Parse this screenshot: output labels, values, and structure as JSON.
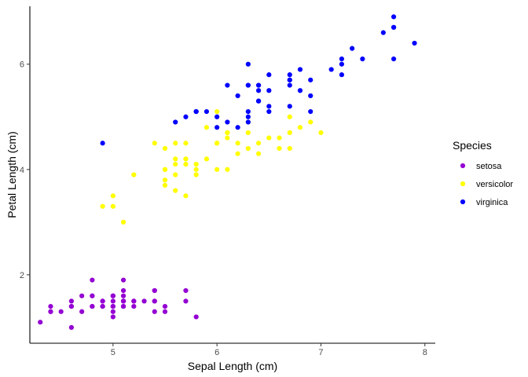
{
  "chart_data": {
    "type": "scatter",
    "title": "",
    "xlabel": "Sepal Length (cm)",
    "ylabel": "Petal Length (cm)",
    "xlim": [
      4.2,
      8.1
    ],
    "ylim": [
      0.7,
      7.1
    ],
    "xticks": [
      5,
      6,
      7,
      8
    ],
    "yticks": [
      2,
      4,
      6
    ],
    "grid": false,
    "legend": {
      "title": "Species",
      "placement": "right"
    },
    "series": [
      {
        "name": "setosa",
        "color": "#9400d3",
        "points": [
          [
            5.1,
            1.4
          ],
          [
            4.9,
            1.4
          ],
          [
            4.7,
            1.3
          ],
          [
            4.6,
            1.5
          ],
          [
            5.0,
            1.4
          ],
          [
            5.4,
            1.7
          ],
          [
            4.6,
            1.4
          ],
          [
            5.0,
            1.5
          ],
          [
            4.4,
            1.4
          ],
          [
            4.9,
            1.5
          ],
          [
            5.4,
            1.5
          ],
          [
            4.8,
            1.6
          ],
          [
            4.8,
            1.4
          ],
          [
            4.3,
            1.1
          ],
          [
            5.8,
            1.2
          ],
          [
            5.7,
            1.5
          ],
          [
            5.4,
            1.3
          ],
          [
            5.1,
            1.4
          ],
          [
            5.7,
            1.7
          ],
          [
            5.1,
            1.5
          ],
          [
            5.4,
            1.7
          ],
          [
            5.1,
            1.5
          ],
          [
            4.6,
            1.0
          ],
          [
            5.1,
            1.7
          ],
          [
            4.8,
            1.9
          ],
          [
            5.0,
            1.6
          ],
          [
            5.0,
            1.6
          ],
          [
            5.2,
            1.5
          ],
          [
            5.2,
            1.4
          ],
          [
            4.7,
            1.6
          ],
          [
            4.8,
            1.6
          ],
          [
            5.4,
            1.5
          ],
          [
            5.2,
            1.5
          ],
          [
            5.5,
            1.4
          ],
          [
            4.9,
            1.5
          ],
          [
            5.0,
            1.2
          ],
          [
            5.5,
            1.3
          ],
          [
            4.9,
            1.4
          ],
          [
            4.4,
            1.3
          ],
          [
            5.1,
            1.5
          ],
          [
            5.0,
            1.3
          ],
          [
            4.5,
            1.3
          ],
          [
            4.4,
            1.3
          ],
          [
            5.0,
            1.6
          ],
          [
            5.1,
            1.9
          ],
          [
            4.8,
            1.4
          ],
          [
            5.1,
            1.6
          ],
          [
            4.6,
            1.4
          ],
          [
            5.3,
            1.5
          ],
          [
            5.0,
            1.4
          ]
        ]
      },
      {
        "name": "versicolor",
        "color": "#ffff00",
        "points": [
          [
            7.0,
            4.7
          ],
          [
            6.4,
            4.5
          ],
          [
            6.9,
            4.9
          ],
          [
            5.5,
            4.0
          ],
          [
            6.5,
            4.6
          ],
          [
            5.7,
            4.5
          ],
          [
            6.3,
            4.7
          ],
          [
            4.9,
            3.3
          ],
          [
            6.6,
            4.6
          ],
          [
            5.2,
            3.9
          ],
          [
            5.0,
            3.5
          ],
          [
            5.9,
            4.2
          ],
          [
            6.0,
            4.0
          ],
          [
            6.1,
            4.7
          ],
          [
            5.6,
            3.6
          ],
          [
            6.7,
            4.4
          ],
          [
            5.6,
            4.5
          ],
          [
            5.8,
            4.1
          ],
          [
            6.2,
            4.5
          ],
          [
            5.6,
            3.9
          ],
          [
            5.9,
            4.8
          ],
          [
            6.1,
            4.0
          ],
          [
            6.3,
            4.9
          ],
          [
            6.1,
            4.7
          ],
          [
            6.4,
            4.3
          ],
          [
            6.6,
            4.4
          ],
          [
            6.8,
            4.8
          ],
          [
            6.7,
            5.0
          ],
          [
            6.0,
            4.5
          ],
          [
            5.7,
            3.5
          ],
          [
            5.5,
            3.8
          ],
          [
            5.5,
            3.7
          ],
          [
            5.8,
            3.9
          ],
          [
            6.0,
            5.1
          ],
          [
            5.4,
            4.5
          ],
          [
            6.0,
            4.5
          ],
          [
            6.7,
            4.7
          ],
          [
            6.3,
            4.4
          ],
          [
            5.6,
            4.1
          ],
          [
            5.5,
            4.0
          ],
          [
            5.5,
            4.4
          ],
          [
            6.1,
            4.6
          ],
          [
            5.8,
            4.0
          ],
          [
            5.0,
            3.3
          ],
          [
            5.6,
            4.2
          ],
          [
            5.7,
            4.2
          ],
          [
            5.7,
            4.2
          ],
          [
            6.2,
            4.3
          ],
          [
            5.1,
            3.0
          ],
          [
            5.7,
            4.1
          ]
        ]
      },
      {
        "name": "virginica",
        "color": "#0000ff",
        "points": [
          [
            6.3,
            6.0
          ],
          [
            5.8,
            5.1
          ],
          [
            7.1,
            5.9
          ],
          [
            6.3,
            5.6
          ],
          [
            6.5,
            5.8
          ],
          [
            7.6,
            6.6
          ],
          [
            4.9,
            4.5
          ],
          [
            7.3,
            6.3
          ],
          [
            6.7,
            5.8
          ],
          [
            7.2,
            6.1
          ],
          [
            6.5,
            5.1
          ],
          [
            6.4,
            5.3
          ],
          [
            6.8,
            5.5
          ],
          [
            5.7,
            5.0
          ],
          [
            5.8,
            5.1
          ],
          [
            6.4,
            5.3
          ],
          [
            6.5,
            5.5
          ],
          [
            7.7,
            6.7
          ],
          [
            7.7,
            6.9
          ],
          [
            6.0,
            5.0
          ],
          [
            6.9,
            5.7
          ],
          [
            5.6,
            4.9
          ],
          [
            7.7,
            6.7
          ],
          [
            6.3,
            4.9
          ],
          [
            6.7,
            5.7
          ],
          [
            7.2,
            6.0
          ],
          [
            6.2,
            4.8
          ],
          [
            6.1,
            4.9
          ],
          [
            6.4,
            5.6
          ],
          [
            7.2,
            5.8
          ],
          [
            7.4,
            6.1
          ],
          [
            7.9,
            6.4
          ],
          [
            6.4,
            5.6
          ],
          [
            6.3,
            5.1
          ],
          [
            6.1,
            5.6
          ],
          [
            7.7,
            6.1
          ],
          [
            6.3,
            5.6
          ],
          [
            6.4,
            5.5
          ],
          [
            6.0,
            4.8
          ],
          [
            6.9,
            5.4
          ],
          [
            6.7,
            5.6
          ],
          [
            6.9,
            5.1
          ],
          [
            5.8,
            5.1
          ],
          [
            6.8,
            5.9
          ],
          [
            6.7,
            5.7
          ],
          [
            6.7,
            5.2
          ],
          [
            6.3,
            5.0
          ],
          [
            6.5,
            5.2
          ],
          [
            6.2,
            5.4
          ],
          [
            5.9,
            5.1
          ]
        ]
      }
    ]
  }
}
